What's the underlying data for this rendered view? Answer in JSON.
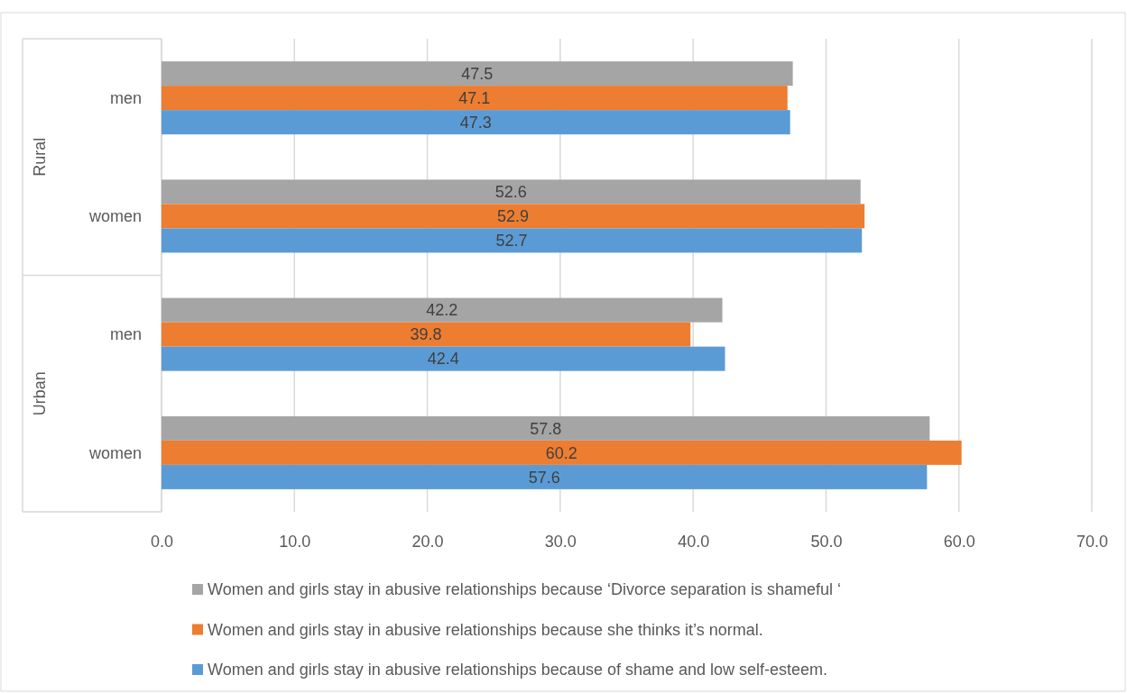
{
  "chart_data": {
    "type": "bar",
    "orientation": "horizontal",
    "categories": [
      "men",
      "women",
      "men",
      "women"
    ],
    "annotations": [
      "Rural",
      "Urban"
    ],
    "series": [
      {
        "name": "Women and girls stay in abusive relationships because ‘Divorce separation is shameful ‘",
        "color": "#a5a5a5",
        "values": [
          47.5,
          52.6,
          42.2,
          57.8
        ]
      },
      {
        "name": "Women and girls stay in abusive relationships because she thinks it’s normal.",
        "color": "#ed7d31",
        "values": [
          47.1,
          52.9,
          39.8,
          60.2
        ]
      },
      {
        "name": "Women and girls stay in abusive relationships because of shame and low self-esteem.",
        "color": "#5b9bd5",
        "values": [
          47.3,
          52.7,
          42.4,
          57.6
        ]
      }
    ],
    "xlim": [
      0,
      70
    ],
    "xticks": [
      {
        "value": 0,
        "label": "0.0"
      },
      {
        "value": 10,
        "label": "10.0"
      },
      {
        "value": 20,
        "label": "20.0"
      },
      {
        "value": 30,
        "label": "30.0"
      },
      {
        "value": 40,
        "label": "40.0"
      },
      {
        "value": 50,
        "label": "50.0"
      },
      {
        "value": 60,
        "label": "60.0"
      },
      {
        "value": 70,
        "label": "70.0"
      }
    ],
    "grid": "x",
    "legend": "bottom",
    "data_labels": true
  }
}
